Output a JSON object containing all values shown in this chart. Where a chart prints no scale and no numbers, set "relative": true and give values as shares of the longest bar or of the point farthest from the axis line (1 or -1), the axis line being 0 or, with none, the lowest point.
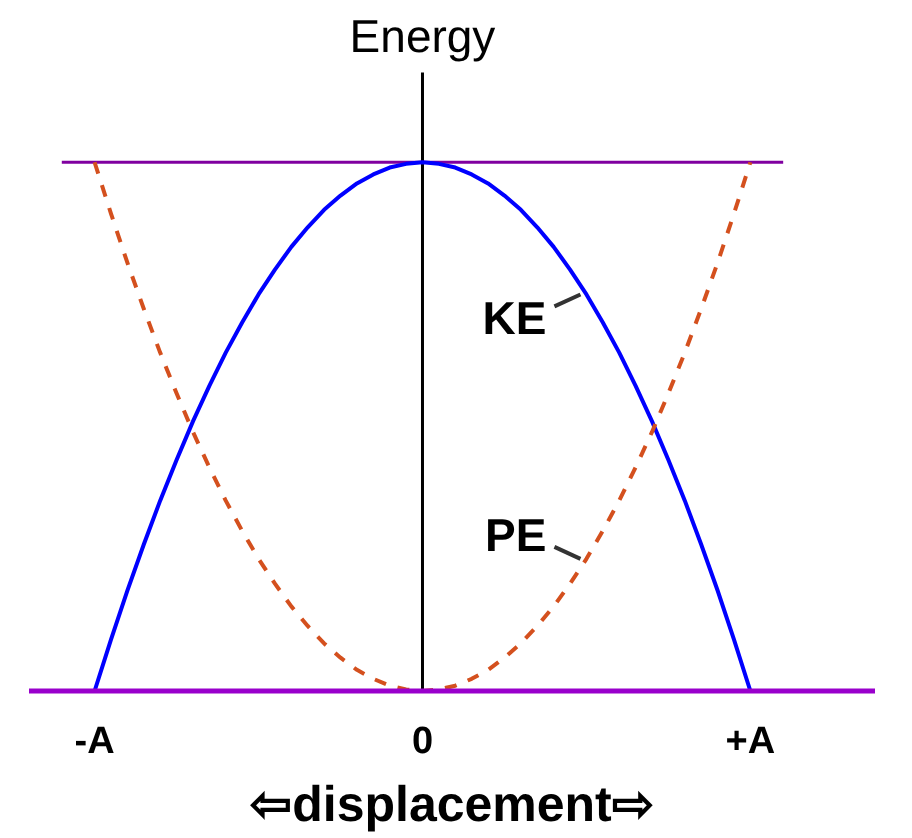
{
  "chart_data": {
    "type": "line",
    "ylabel": "Energy",
    "xlabel": "⇦displacement⇨",
    "relative": true,
    "tick_labels": "x",
    "categories": [
      "-A",
      null,
      null,
      null,
      null,
      null,
      null,
      null,
      null,
      null,
      null,
      null,
      null,
      null,
      null,
      null,
      null,
      null,
      null,
      null,
      "0",
      null,
      null,
      null,
      null,
      null,
      null,
      null,
      null,
      null,
      null,
      null,
      null,
      null,
      null,
      null,
      null,
      null,
      null,
      null,
      "+A"
    ],
    "series": [
      {
        "name": "KE",
        "color": "#0000ff",
        "values": [
          0,
          0.097,
          0.19,
          0.277,
          0.36,
          0.437,
          0.51,
          0.577,
          0.64,
          0.697,
          0.75,
          0.797,
          0.84,
          0.877,
          0.91,
          0.937,
          0.96,
          0.977,
          0.99,
          0.997,
          1,
          0.997,
          0.99,
          0.977,
          0.96,
          0.937,
          0.91,
          0.877,
          0.84,
          0.797,
          0.75,
          0.697,
          0.64,
          0.577,
          0.51,
          0.437,
          0.36,
          0.277,
          0.19,
          0.097,
          0
        ]
      },
      {
        "name": "PE",
        "color": "#d4501e",
        "line_style": "dashed",
        "values": [
          1,
          0.903,
          0.81,
          0.723,
          0.64,
          0.563,
          0.49,
          0.423,
          0.36,
          0.303,
          0.25,
          0.203,
          0.16,
          0.123,
          0.09,
          0.063,
          0.04,
          0.023,
          0.01,
          0.003,
          0,
          0.003,
          0.01,
          0.023,
          0.04,
          0.063,
          0.09,
          0.123,
          0.16,
          0.203,
          0.25,
          0.303,
          0.36,
          0.423,
          0.49,
          0.563,
          0.64,
          0.723,
          0.81,
          0.903,
          1
        ]
      }
    ],
    "ref_lines": [
      {
        "axis": "y",
        "value": 1,
        "color": "#8000a0"
      }
    ]
  }
}
